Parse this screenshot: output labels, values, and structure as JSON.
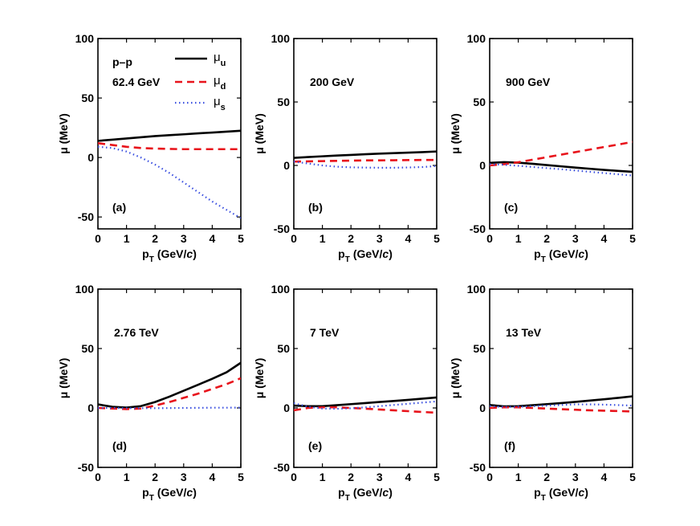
{
  "colors": {
    "mu_u": "#000000",
    "mu_d": "#e8141c",
    "mu_s": "#3a4fe0"
  },
  "legend": {
    "entries": [
      {
        "key": "u",
        "symbol": "μ",
        "sub": "u"
      },
      {
        "key": "d",
        "symbol": "μ",
        "sub": "d"
      },
      {
        "key": "s",
        "symbol": "μ",
        "sub": "s"
      }
    ]
  },
  "chart_data": [
    {
      "type": "line",
      "panel_label": "(a)",
      "system_label": "p–p",
      "energy_label": "62.4 GeV",
      "ylabel": "μ (MeV)",
      "xlabel_main": "p",
      "xlabel_sub": "T",
      "xlabel_unit": "(GeV/",
      "xlabel_c": "c",
      "xlabel_close": ")",
      "xlim": [
        0,
        5
      ],
      "ylim": [
        -60,
        100
      ],
      "xticks": [
        "0",
        "1",
        "2",
        "3",
        "4",
        "5"
      ],
      "yticks": [
        "-50",
        "0",
        "50",
        "100"
      ],
      "x": [
        0,
        0.5,
        1,
        1.5,
        2,
        2.5,
        3,
        3.5,
        4,
        4.5,
        5
      ],
      "series": [
        {
          "name": "mu_u",
          "values": [
            14,
            15,
            16,
            17,
            18,
            18.8,
            19.5,
            20.3,
            21,
            21.7,
            22.5
          ]
        },
        {
          "name": "mu_d",
          "values": [
            12,
            10.5,
            9,
            8,
            7.5,
            7.2,
            7,
            7,
            7,
            7,
            7
          ]
        },
        {
          "name": "mu_s",
          "values": [
            9,
            8,
            5,
            0,
            -6,
            -13,
            -21,
            -29,
            -37,
            -44,
            -51
          ]
        }
      ]
    },
    {
      "type": "line",
      "panel_label": "(b)",
      "energy_label": "200 GeV",
      "ylabel": "μ (MeV)",
      "xlabel_main": "p",
      "xlabel_sub": "T",
      "xlabel_unit": "(GeV/",
      "xlabel_c": "c",
      "xlabel_close": ")",
      "xlim": [
        0,
        5
      ],
      "ylim": [
        -50,
        100
      ],
      "xticks": [
        "0",
        "1",
        "2",
        "3",
        "4",
        "5"
      ],
      "yticks": [
        "-50",
        "0",
        "50",
        "100"
      ],
      "x": [
        0,
        0.5,
        1,
        1.5,
        2,
        2.5,
        3,
        3.5,
        4,
        4.5,
        5
      ],
      "series": [
        {
          "name": "mu_u",
          "values": [
            6,
            6.6,
            7.2,
            7.8,
            8.3,
            8.8,
            9.3,
            9.7,
            10.1,
            10.5,
            11
          ]
        },
        {
          "name": "mu_d",
          "values": [
            3,
            3.2,
            3.4,
            3.6,
            3.8,
            4,
            4,
            4.1,
            4.2,
            4.3,
            4.3
          ]
        },
        {
          "name": "mu_s",
          "values": [
            3,
            1.5,
            0,
            -1,
            -1.5,
            -1.7,
            -1.8,
            -1.8,
            -1.6,
            -1.3,
            -0.5
          ]
        }
      ]
    },
    {
      "type": "line",
      "panel_label": "(c)",
      "energy_label": "900 GeV",
      "ylabel": "μ (MeV)",
      "xlabel_main": "p",
      "xlabel_sub": "T",
      "xlabel_unit": "(GeV/",
      "xlabel_c": "c",
      "xlabel_close": ")",
      "xlim": [
        0,
        5
      ],
      "ylim": [
        -50,
        100
      ],
      "xticks": [
        "0",
        "1",
        "2",
        "3",
        "4",
        "5"
      ],
      "yticks": [
        "-50",
        "0",
        "50",
        "100"
      ],
      "x": [
        0,
        0.5,
        1,
        1.5,
        2,
        2.5,
        3,
        3.5,
        4,
        4.5,
        5
      ],
      "series": [
        {
          "name": "mu_u",
          "values": [
            2,
            2.6,
            2.2,
            1.3,
            0.3,
            -0.7,
            -1.7,
            -2.6,
            -3.5,
            -4.3,
            -5
          ]
        },
        {
          "name": "mu_d",
          "values": [
            0,
            1,
            2.5,
            4.5,
            6.5,
            8.5,
            10.5,
            12.5,
            14.5,
            16.5,
            18.5
          ]
        },
        {
          "name": "mu_s",
          "values": [
            1,
            0.5,
            -0.3,
            -1.2,
            -2.1,
            -3,
            -4,
            -5,
            -6,
            -7,
            -8
          ]
        }
      ]
    },
    {
      "type": "line",
      "panel_label": "(d)",
      "energy_label": "2.76 TeV",
      "ylabel": "μ (MeV)",
      "xlabel_main": "p",
      "xlabel_sub": "T",
      "xlabel_unit": "(GeV/",
      "xlabel_c": "c",
      "xlabel_close": ")",
      "xlim": [
        0,
        5
      ],
      "ylim": [
        -50,
        100
      ],
      "xticks": [
        "0",
        "1",
        "2",
        "3",
        "4",
        "5"
      ],
      "yticks": [
        "-50",
        "0",
        "50",
        "100"
      ],
      "x": [
        0,
        0.5,
        1,
        1.5,
        2,
        2.5,
        3,
        3.5,
        4,
        4.5,
        5
      ],
      "series": [
        {
          "name": "mu_u",
          "values": [
            3,
            1,
            0.3,
            1.5,
            5,
            9.5,
            14.5,
            19.5,
            24.5,
            30,
            38
          ]
        },
        {
          "name": "mu_d",
          "values": [
            0,
            -0.5,
            -1,
            -0.5,
            2,
            5,
            8.5,
            12,
            16,
            20,
            25
          ]
        },
        {
          "name": "mu_s",
          "values": [
            0,
            0,
            -0.2,
            -0.2,
            -0.2,
            -0.1,
            0,
            0.1,
            0.2,
            0.2,
            0.3
          ]
        }
      ]
    },
    {
      "type": "line",
      "panel_label": "(e)",
      "energy_label": "7 TeV",
      "ylabel": "μ (MeV)",
      "xlabel_main": "p",
      "xlabel_sub": "T",
      "xlabel_unit": "(GeV/",
      "xlabel_c": "c",
      "xlabel_close": ")",
      "xlim": [
        0,
        5
      ],
      "ylim": [
        -50,
        100
      ],
      "xticks": [
        "0",
        "1",
        "2",
        "3",
        "4",
        "5"
      ],
      "yticks": [
        "-50",
        "0",
        "50",
        "100"
      ],
      "x": [
        0,
        0.5,
        1,
        1.5,
        2,
        2.5,
        3,
        3.5,
        4,
        4.5,
        5
      ],
      "series": [
        {
          "name": "mu_u",
          "values": [
            2,
            1.5,
            1.5,
            2.3,
            3.2,
            4.1,
            5,
            5.9,
            6.8,
            7.8,
            8.8
          ]
        },
        {
          "name": "mu_d",
          "values": [
            -2,
            0,
            0.5,
            0.5,
            0,
            -0.6,
            -1.3,
            -2,
            -2.7,
            -3.4,
            -4
          ]
        },
        {
          "name": "mu_s",
          "values": [
            4,
            1,
            -0.5,
            -0.7,
            -0.3,
            0.5,
            1.5,
            2.5,
            3.5,
            4.5,
            5.5
          ]
        }
      ]
    },
    {
      "type": "line",
      "panel_label": "(f)",
      "energy_label": "13 TeV",
      "ylabel": "μ (MeV)",
      "xlabel_main": "p",
      "xlabel_sub": "T",
      "xlabel_unit": "(GeV/",
      "xlabel_c": "c",
      "xlabel_close": ")",
      "xlim": [
        0,
        5
      ],
      "ylim": [
        -50,
        100
      ],
      "xticks": [
        "0",
        "1",
        "2",
        "3",
        "4",
        "5"
      ],
      "yticks": [
        "-50",
        "0",
        "50",
        "100"
      ],
      "x": [
        0,
        0.5,
        1,
        1.5,
        2,
        2.5,
        3,
        3.5,
        4,
        4.5,
        5
      ],
      "series": [
        {
          "name": "mu_u",
          "values": [
            2.5,
            1.3,
            1.5,
            2.3,
            3.2,
            4.1,
            5.1,
            6.2,
            7.3,
            8.5,
            9.8
          ]
        },
        {
          "name": "mu_d",
          "values": [
            0,
            0.5,
            0.5,
            0,
            -0.5,
            -1,
            -1.5,
            -2,
            -2.3,
            -2.6,
            -3
          ]
        },
        {
          "name": "mu_s",
          "values": [
            1.5,
            0.8,
            1,
            1.5,
            2,
            2.5,
            3,
            3,
            2.8,
            2.4,
            2
          ]
        }
      ]
    }
  ]
}
